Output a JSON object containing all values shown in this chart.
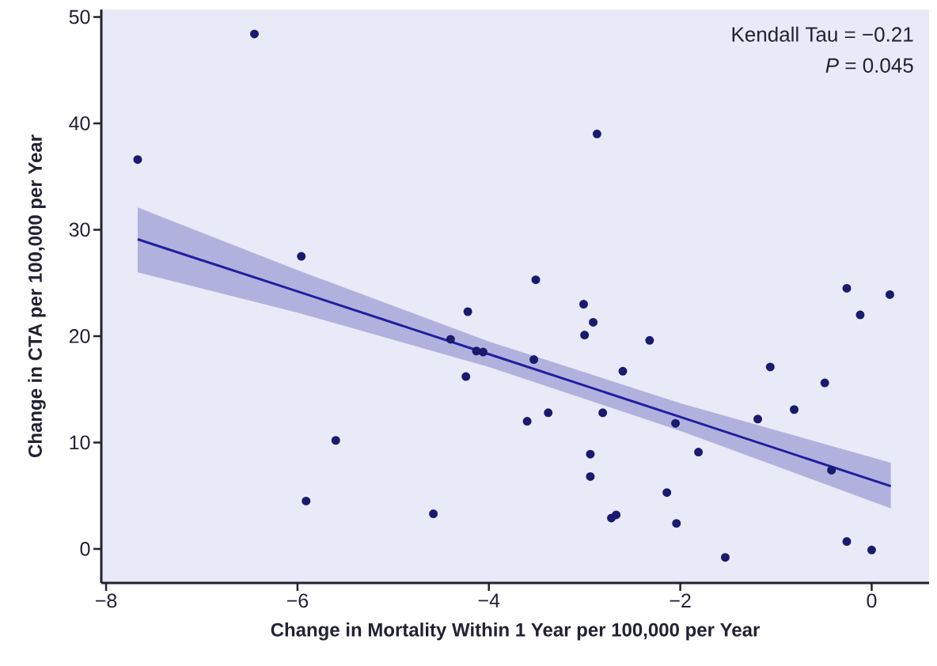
{
  "chart_data": {
    "type": "scatter",
    "xlabel": "Change in Mortality Within 1 Year per 100,000 per Year",
    "ylabel": "Change in CTA per 100,000 per Year",
    "annotations": [
      "Kendall Tau = −0.21",
      "*P* = 0.045"
    ],
    "xlim": [
      -8.05,
      0.6
    ],
    "ylim": [
      -3.2,
      50.7
    ],
    "xticks": [
      {
        "value": -8,
        "label": "−8"
      },
      {
        "value": -6,
        "label": "−6"
      },
      {
        "value": -4,
        "label": "−4"
      },
      {
        "value": -2,
        "label": "−2"
      },
      0
    ],
    "yticks": [
      0,
      10,
      20,
      30,
      40,
      50
    ],
    "series": [
      {
        "type": "line",
        "marker": "none",
        "color": "#1f1fa0",
        "x": [
          -7.67,
          -6,
          -4,
          -2,
          0.2
        ],
        "values": [
          29.1,
          24.2,
          18.3,
          12.4,
          5.9
        ],
        "lower": [
          26.0,
          22.2,
          17.1,
          11.1,
          3.8
        ],
        "upper": [
          32.1,
          26.2,
          19.5,
          13.7,
          8.1
        ]
      },
      {
        "type": "scatter",
        "marker": "circle",
        "color": "#1a1a6e",
        "x": [
          -7.67,
          -6.45,
          -5.96,
          -4.22,
          -2.87,
          -3.51,
          -3.01,
          -2.91,
          -0.26,
          0.19,
          -0.12,
          -3.0,
          -2.32,
          -4.13,
          -4.06,
          -4.4,
          -4.24,
          -5.6,
          -5.91,
          -4.58,
          -3.53,
          -2.6,
          -3.6,
          -3.38,
          -2.81,
          -2.05,
          -2.94,
          -2.94,
          -1.81,
          -2.14,
          -2.72,
          -2.67,
          -2.04,
          -1.53,
          -1.06,
          -0.49,
          -0.81,
          -1.19,
          -0.42,
          -0.26,
          0.0
        ],
        "values": [
          36.6,
          48.4,
          27.5,
          22.3,
          39.0,
          25.3,
          23.0,
          21.3,
          24.5,
          23.9,
          22.0,
          20.1,
          19.6,
          18.6,
          18.5,
          19.7,
          16.2,
          10.2,
          4.5,
          3.3,
          17.8,
          16.7,
          12.0,
          12.8,
          12.8,
          11.8,
          8.9,
          6.8,
          9.1,
          5.3,
          2.9,
          3.2,
          2.4,
          -0.8,
          17.1,
          15.6,
          13.1,
          12.2,
          7.4,
          0.7,
          -0.1
        ]
      }
    ]
  }
}
